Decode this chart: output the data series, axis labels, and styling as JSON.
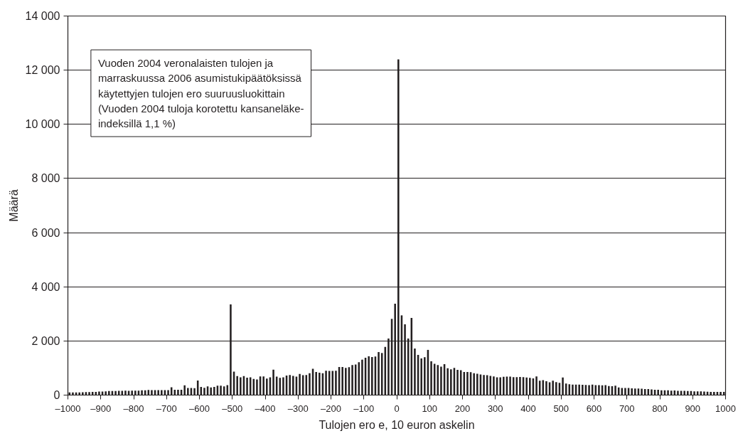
{
  "chart_data": {
    "type": "histogram",
    "xlabel": "Tulojen ero e, 10 euron askelin",
    "ylabel": "Määrä",
    "annotations": [
      "Vuoden 2004 veronalaisten tulojen ja\nmarraskuussa 2006 asumistukipäätöksissä\nkäytettyjen tulojen ero suuruusluokittain\n(Vuoden 2004 tuloja korotettu kansaneläke-\nindeksillä 1,1 %)"
    ],
    "color": "#231f20",
    "bins": [
      -1000,
      -990,
      -980,
      -970,
      -960,
      -950,
      -940,
      -930,
      -920,
      -910,
      -900,
      -890,
      -880,
      -870,
      -860,
      -850,
      -840,
      -830,
      -820,
      -810,
      -800,
      -790,
      -780,
      -770,
      -760,
      -750,
      -740,
      -730,
      -720,
      -710,
      -700,
      -690,
      -680,
      -670,
      -660,
      -650,
      -640,
      -630,
      -620,
      -610,
      -600,
      -590,
      -580,
      -570,
      -560,
      -550,
      -540,
      -530,
      -520,
      -510,
      -500,
      -490,
      -480,
      -470,
      -460,
      -450,
      -440,
      -430,
      -420,
      -410,
      -400,
      -390,
      -380,
      -370,
      -360,
      -350,
      -340,
      -330,
      -320,
      -310,
      -300,
      -290,
      -280,
      -270,
      -260,
      -250,
      -240,
      -230,
      -220,
      -210,
      -200,
      -190,
      -180,
      -170,
      -160,
      -150,
      -140,
      -130,
      -120,
      -110,
      -100,
      -90,
      -80,
      -70,
      -60,
      -50,
      -40,
      -30,
      -20,
      -10,
      0,
      10,
      20,
      30,
      40,
      50,
      60,
      70,
      80,
      90,
      100,
      110,
      120,
      130,
      140,
      150,
      160,
      170,
      180,
      190,
      200,
      210,
      220,
      230,
      240,
      250,
      260,
      270,
      280,
      290,
      300,
      310,
      320,
      330,
      340,
      350,
      360,
      370,
      380,
      390,
      400,
      410,
      420,
      430,
      440,
      450,
      460,
      470,
      480,
      490,
      500,
      510,
      520,
      530,
      540,
      550,
      560,
      570,
      580,
      590,
      600,
      610,
      620,
      630,
      640,
      650,
      660,
      670,
      680,
      690,
      700,
      710,
      720,
      730,
      740,
      750,
      760,
      770,
      780,
      790,
      800,
      810,
      820,
      830,
      840,
      850,
      860,
      870,
      880,
      890,
      900,
      910,
      920,
      930,
      940,
      950,
      960,
      970,
      980,
      990,
      1000
    ],
    "values": [
      100,
      100,
      100,
      100,
      105,
      110,
      110,
      120,
      120,
      130,
      130,
      140,
      150,
      150,
      150,
      160,
      160,
      165,
      160,
      165,
      165,
      165,
      175,
      175,
      190,
      185,
      185,
      185,
      185,
      185,
      185,
      290,
      200,
      200,
      200,
      360,
      260,
      260,
      255,
      540,
      305,
      270,
      325,
      280,
      305,
      350,
      350,
      325,
      365,
      3350,
      870,
      700,
      655,
      700,
      645,
      655,
      600,
      575,
      690,
      690,
      610,
      655,
      940,
      680,
      640,
      655,
      725,
      740,
      710,
      680,
      780,
      735,
      745,
      810,
      970,
      855,
      830,
      805,
      900,
      890,
      890,
      900,
      1040,
      1040,
      1005,
      1030,
      1110,
      1130,
      1215,
      1310,
      1380,
      1435,
      1405,
      1425,
      1590,
      1555,
      1780,
      2090,
      2815,
      3375,
      12400,
      2945,
      2615,
      2090,
      2850,
      1720,
      1485,
      1355,
      1400,
      1670,
      1250,
      1155,
      1110,
      1050,
      1145,
      990,
      950,
      1005,
      935,
      920,
      855,
      855,
      850,
      810,
      785,
      760,
      745,
      735,
      710,
      690,
      655,
      655,
      675,
      680,
      680,
      665,
      660,
      670,
      660,
      650,
      640,
      620,
      690,
      535,
      550,
      510,
      470,
      530,
      480,
      450,
      650,
      430,
      400,
      390,
      385,
      385,
      380,
      375,
      370,
      390,
      370,
      365,
      360,
      365,
      335,
      330,
      345,
      285,
      265,
      260,
      260,
      250,
      245,
      240,
      235,
      225,
      220,
      210,
      200,
      195,
      180,
      175,
      175,
      165,
      170,
      160,
      155,
      155,
      150,
      150,
      140,
      140,
      135,
      130,
      125,
      120,
      120,
      115,
      115,
      120
    ],
    "xlim": [
      -1000,
      1000
    ],
    "xticks": [
      {
        "value": -1000,
        "label": "–1000"
      },
      {
        "value": -900,
        "label": "–900"
      },
      {
        "value": -800,
        "label": "–800"
      },
      {
        "value": -700,
        "label": "–700"
      },
      {
        "value": -600,
        "label": "–600"
      },
      {
        "value": -500,
        "label": "–500"
      },
      {
        "value": -400,
        "label": "–400"
      },
      {
        "value": -300,
        "label": "–300"
      },
      {
        "value": -200,
        "label": "–200"
      },
      {
        "value": -100,
        "label": "–100"
      },
      0,
      100,
      200,
      300,
      400,
      500,
      600,
      700,
      800,
      900,
      1000
    ],
    "ylim": [
      0,
      14000
    ],
    "yticks": [
      0,
      {
        "value": 2000,
        "label": "2 000"
      },
      {
        "value": 4000,
        "label": "4 000"
      },
      {
        "value": 6000,
        "label": "6 000"
      },
      {
        "value": 8000,
        "label": "8 000"
      },
      {
        "value": 10000,
        "label": "10 000"
      },
      {
        "value": 12000,
        "label": "12 000"
      },
      {
        "value": 14000,
        "label": "14 000"
      }
    ],
    "grid": "y"
  }
}
